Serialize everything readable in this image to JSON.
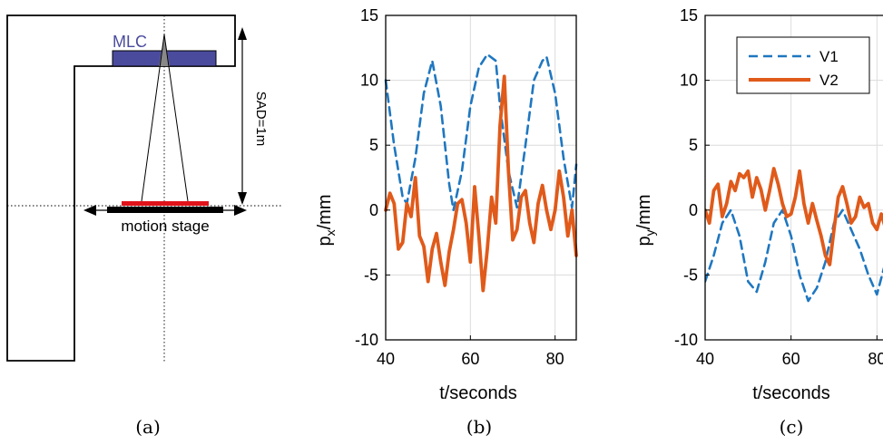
{
  "schematic": {
    "mlc_label": "MLC",
    "sad_label": "SAD=1m",
    "stage_label": "motion stage",
    "colors": {
      "mlc": "#4b4b9e",
      "detector": "#e0121a",
      "stage": "#000000"
    }
  },
  "captions": {
    "a": "(a)",
    "b": "(b)",
    "c": "(c)"
  },
  "chart_data": [
    {
      "type": "line",
      "xlabel": "t/seconds",
      "ylabel_main": "p",
      "ylabel_sub": "x",
      "ylabel_unit": "/mm",
      "xlim": [
        40,
        85
      ],
      "ylim": [
        -10,
        15
      ],
      "xticks": [
        40,
        60,
        80
      ],
      "yticks": [
        -10,
        -5,
        0,
        5,
        10,
        15
      ],
      "grid": true,
      "series": [
        {
          "color": "#1f77c0",
          "dash": "dashed",
          "x": [
            40,
            42,
            44,
            45,
            47,
            49,
            51,
            53,
            55,
            56,
            58,
            60,
            62,
            64,
            66,
            67,
            69,
            71,
            73,
            75,
            77,
            78,
            80,
            82,
            84,
            85
          ],
          "y": [
            10,
            5,
            1,
            0.5,
            4,
            9,
            11.5,
            8,
            2,
            0,
            3,
            8,
            11,
            12,
            11.5,
            8,
            3,
            0.2,
            5,
            10,
            11.5,
            11.8,
            9,
            4,
            0.2,
            3.5
          ]
        },
        {
          "color": "#e05a1a",
          "dash": "solid",
          "x": [
            40,
            41,
            42,
            43,
            44,
            45,
            46,
            47,
            48,
            49,
            50,
            51,
            52,
            53,
            54,
            55,
            56,
            57,
            58,
            59,
            60,
            61,
            62,
            63,
            64,
            65,
            66,
            67,
            68,
            69,
            70,
            71,
            72,
            73,
            74,
            75,
            76,
            77,
            78,
            79,
            80,
            81,
            82,
            83,
            84,
            85
          ],
          "y": [
            0,
            1.3,
            0.5,
            -3,
            -2.5,
            0.5,
            -0.5,
            2.5,
            -2,
            -2.8,
            -5.5,
            -3,
            -1.8,
            -4,
            -5.8,
            -3.2,
            -1.5,
            0.5,
            0.8,
            -1,
            -4,
            1.8,
            -2,
            -6.2,
            -3,
            1,
            -1,
            6.5,
            10.3,
            3,
            -2.3,
            -1.5,
            1,
            1.5,
            -1,
            -2.5,
            0.5,
            1.9,
            0,
            -1.5,
            0,
            3,
            1,
            -2,
            0,
            -3.5
          ]
        }
      ]
    },
    {
      "type": "line",
      "xlabel": "t/seconds",
      "ylabel_main": "p",
      "ylabel_sub": "y",
      "ylabel_unit": "/mm",
      "xlim": [
        40,
        85
      ],
      "ylim": [
        -10,
        15
      ],
      "xticks": [
        40,
        60,
        80
      ],
      "yticks": [
        -10,
        -5,
        0,
        5,
        10,
        15
      ],
      "grid": true,
      "legend_position": "top-right",
      "series": [
        {
          "name": "V1",
          "color": "#1f77c0",
          "dash": "dashed",
          "x": [
            40,
            42,
            44,
            46,
            48,
            50,
            52,
            54,
            56,
            58,
            60,
            62,
            64,
            66,
            68,
            70,
            72,
            74,
            76,
            78,
            80,
            82,
            84,
            85
          ],
          "y": [
            -5.5,
            -3.5,
            -1,
            0,
            -2,
            -5.5,
            -6.3,
            -4,
            -1,
            0,
            -2,
            -5,
            -7,
            -6,
            -4,
            -1,
            0,
            -1.5,
            -3,
            -5,
            -6.5,
            -4,
            -1,
            0
          ]
        },
        {
          "name": "V2",
          "color": "#e05a1a",
          "dash": "solid",
          "x": [
            40,
            41,
            42,
            43,
            44,
            45,
            46,
            47,
            48,
            49,
            50,
            51,
            52,
            53,
            54,
            55,
            56,
            57,
            58,
            59,
            60,
            61,
            62,
            63,
            64,
            65,
            66,
            67,
            68,
            69,
            70,
            71,
            72,
            73,
            74,
            75,
            76,
            77,
            78,
            79,
            80,
            81,
            82,
            83,
            84,
            85
          ],
          "y": [
            0,
            -1,
            1.5,
            2,
            -0.5,
            0.5,
            2.2,
            1.5,
            2.8,
            2.5,
            3,
            1,
            2.5,
            1.6,
            0,
            1.5,
            3.2,
            2,
            0.5,
            -0.5,
            -0.3,
            1,
            3,
            0.5,
            -1,
            0.5,
            -0.8,
            -2,
            -3.5,
            -4.2,
            -1.5,
            1,
            1.8,
            0.5,
            -1,
            -0.5,
            1,
            0.2,
            0.5,
            -1,
            -1.5,
            -0.3,
            -1.4,
            0,
            0.3,
            0.8
          ]
        }
      ]
    }
  ]
}
